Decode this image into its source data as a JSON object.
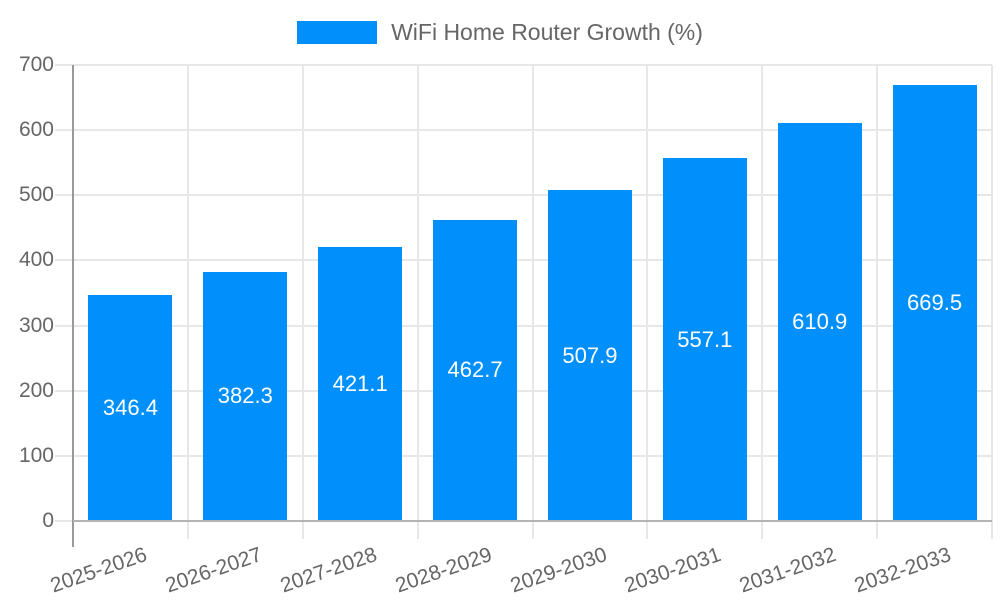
{
  "colors": {
    "bar": "#008FFB",
    "label_text": "#666666",
    "value_text": "#ffffff",
    "grid": "#e7e7e7",
    "y_axis_line": "#999999",
    "x_axis_line": "#b3b3b3",
    "background": "#ffffff"
  },
  "chart_data": {
    "type": "bar",
    "title": "",
    "legend": {
      "position": "top",
      "label": "WiFi Home Router Growth (%)"
    },
    "categories": [
      "2025-2026",
      "2026-2027",
      "2027-2028",
      "2028-2029",
      "2029-2030",
      "2030-2031",
      "2031-2032",
      "2032-2033"
    ],
    "series": [
      {
        "name": "WiFi Home Router Growth (%)",
        "color": "#008FFB",
        "values": [
          346.4,
          382.3,
          421.1,
          462.7,
          507.9,
          557.1,
          610.9,
          669.5
        ]
      }
    ],
    "value_labels": [
      "346.4",
      "382.3",
      "421.1",
      "462.7",
      "507.9",
      "557.1",
      "610.9",
      "669.5"
    ],
    "value_labels_position": "inside-center",
    "xlabel": "",
    "ylabel": "",
    "ylim": [
      0,
      700
    ],
    "yticks": [
      0,
      100,
      200,
      300,
      400,
      500,
      600,
      700
    ],
    "grid": true,
    "x_label_rotation_deg": -19
  }
}
